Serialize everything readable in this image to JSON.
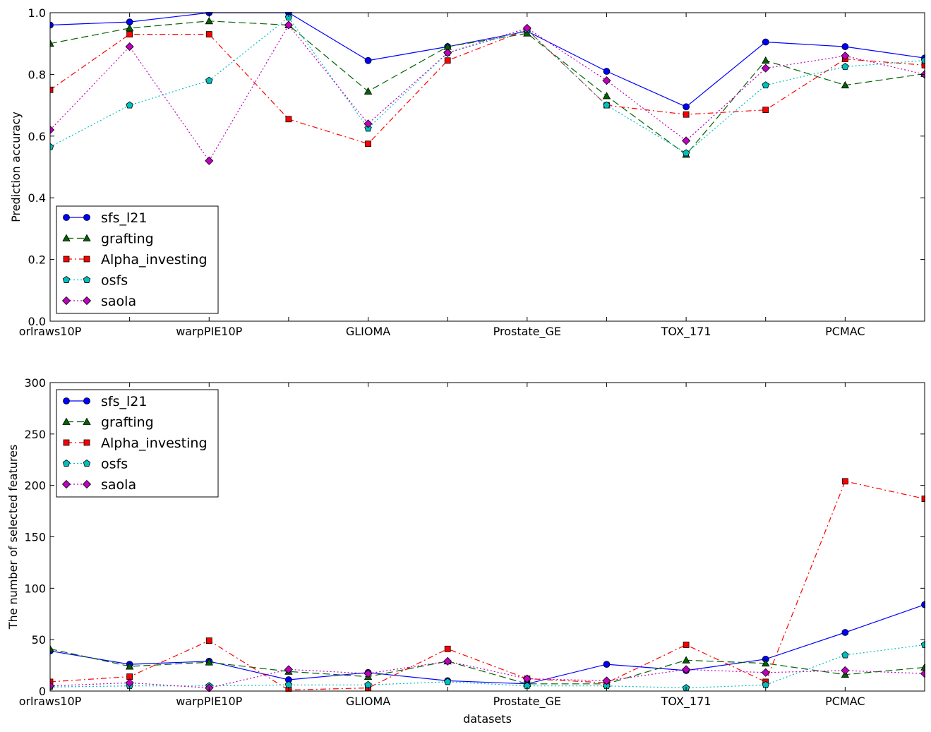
{
  "chart_data": [
    {
      "type": "line",
      "title": "",
      "xlabel": "",
      "ylabel": "Prediction accuracy",
      "ylim": [
        0,
        1.0
      ],
      "yticks": [
        "0.0",
        "0.2",
        "0.4",
        "0.6",
        "0.8",
        "1.0"
      ],
      "ytick_values": [
        0,
        0.2,
        0.4,
        0.6,
        0.8,
        1.0
      ],
      "x_count": 12,
      "tick_labels": [
        "orlraws10P",
        "warpPIE10P",
        "GLIOMA",
        "Prostate_GE",
        "TOX_171",
        "PCMAC"
      ],
      "tick_positions": [
        0,
        2,
        4,
        6,
        8,
        10
      ],
      "legend_position": "lower-left",
      "grid": false,
      "series": [
        {
          "name": "sfs_l21",
          "color": "#0000ff",
          "marker": "circle",
          "linestyle": "solid",
          "values": [
            0.96,
            0.97,
            1.0,
            1.0,
            0.845,
            0.89,
            0.94,
            0.81,
            0.695,
            0.905,
            0.89,
            0.853
          ]
        },
        {
          "name": "grafting",
          "color": "#006400",
          "marker": "triangle",
          "linestyle": "dashed",
          "values": [
            0.9,
            0.95,
            0.973,
            0.96,
            0.745,
            0.89,
            0.933,
            0.73,
            0.54,
            0.845,
            0.765,
            0.802
          ]
        },
        {
          "name": "Alpha_investing",
          "color": "#ff0000",
          "marker": "square",
          "linestyle": "dashdot",
          "values": [
            0.75,
            0.93,
            0.93,
            0.655,
            0.575,
            0.845,
            0.945,
            0.7,
            0.67,
            0.685,
            0.85,
            0.83
          ]
        },
        {
          "name": "osfs",
          "color": "#00bfbf",
          "marker": "pentagon",
          "linestyle": "dotted",
          "values": [
            0.565,
            0.7,
            0.78,
            0.985,
            0.625,
            0.87,
            0.945,
            0.7,
            0.545,
            0.765,
            0.825,
            0.845
          ]
        },
        {
          "name": "saola",
          "color": "#bf00bf",
          "marker": "diamond",
          "linestyle": "dotted",
          "values": [
            0.62,
            0.89,
            0.52,
            0.96,
            0.64,
            0.87,
            0.95,
            0.78,
            0.585,
            0.82,
            0.86,
            0.8
          ]
        }
      ]
    },
    {
      "type": "line",
      "title": "",
      "xlabel": "datasets",
      "ylabel": "The number of selected features",
      "ylim": [
        0,
        300
      ],
      "yticks": [
        "0",
        "50",
        "100",
        "150",
        "200",
        "250",
        "300"
      ],
      "ytick_values": [
        0,
        50,
        100,
        150,
        200,
        250,
        300
      ],
      "x_count": 12,
      "tick_labels": [
        "orlraws10P",
        "warpPIE10P",
        "GLIOMA",
        "Prostate_GE",
        "TOX_171",
        "PCMAC"
      ],
      "tick_positions": [
        0,
        2,
        4,
        6,
        8,
        10
      ],
      "legend_position": "upper-left",
      "grid": false,
      "series": [
        {
          "name": "sfs_l21",
          "color": "#0000ff",
          "marker": "circle",
          "linestyle": "solid",
          "values": [
            39,
            26,
            29,
            11,
            18,
            10,
            7,
            26,
            20,
            31,
            57,
            84
          ]
        },
        {
          "name": "grafting",
          "color": "#006400",
          "marker": "triangle",
          "linestyle": "dashed",
          "values": [
            41,
            24,
            28,
            19,
            14,
            29,
            7,
            7,
            30,
            27,
            16,
            23
          ]
        },
        {
          "name": "Alpha_investing",
          "color": "#ff0000",
          "marker": "square",
          "linestyle": "dashdot",
          "values": [
            9,
            14,
            49,
            1,
            3,
            41,
            12,
            8,
            45,
            9,
            204,
            187
          ]
        },
        {
          "name": "osfs",
          "color": "#00bfbf",
          "marker": "pentagon",
          "linestyle": "dotted",
          "values": [
            4,
            5,
            5,
            6,
            6,
            9,
            5,
            5,
            3,
            6,
            35,
            45
          ]
        },
        {
          "name": "saola",
          "color": "#bf00bf",
          "marker": "diamond",
          "linestyle": "dotted",
          "values": [
            5,
            8,
            3,
            21,
            17,
            29,
            12,
            10,
            21,
            18,
            20,
            17
          ]
        }
      ]
    }
  ]
}
